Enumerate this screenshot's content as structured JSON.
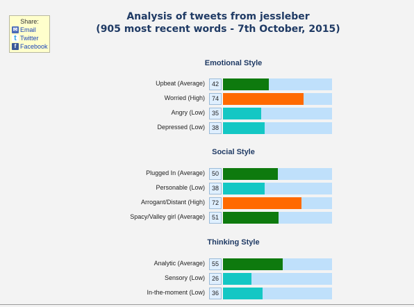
{
  "share": {
    "title": "Share:",
    "links": [
      {
        "label": "Email",
        "icon": "email-icon"
      },
      {
        "label": "Twitter",
        "icon": "twitter-icon"
      },
      {
        "label": "Facebook",
        "icon": "facebook-icon"
      }
    ]
  },
  "header": {
    "line1": "Analysis of tweets from jessleber",
    "line2": "(905 most recent words - 7th October, 2015)"
  },
  "colors": {
    "Average": "#0e7a0e",
    "High": "#ff6a00",
    "Low": "#14c7c4",
    "track": "#bfe0fb"
  },
  "scale_max": 100,
  "sections": [
    {
      "title": "Emotional Style",
      "rows": [
        {
          "label": "Upbeat (Average)",
          "value": 42,
          "level": "Average"
        },
        {
          "label": "Worried (High)",
          "value": 74,
          "level": "High"
        },
        {
          "label": "Angry (Low)",
          "value": 35,
          "level": "Low"
        },
        {
          "label": "Depressed (Low)",
          "value": 38,
          "level": "Low"
        }
      ]
    },
    {
      "title": "Social Style",
      "rows": [
        {
          "label": "Plugged In (Average)",
          "value": 50,
          "level": "Average"
        },
        {
          "label": "Personable (Low)",
          "value": 38,
          "level": "Low"
        },
        {
          "label": "Arrogant/Distant (High)",
          "value": 72,
          "level": "High"
        },
        {
          "label": "Spacy/Valley girl (Average)",
          "value": 51,
          "level": "Average"
        }
      ]
    },
    {
      "title": "Thinking Style",
      "rows": [
        {
          "label": "Analytic (Average)",
          "value": 55,
          "level": "Average"
        },
        {
          "label": "Sensory (Low)",
          "value": 26,
          "level": "Low"
        },
        {
          "label": "In-the-moment (Low)",
          "value": 36,
          "level": "Low"
        }
      ]
    }
  ]
}
